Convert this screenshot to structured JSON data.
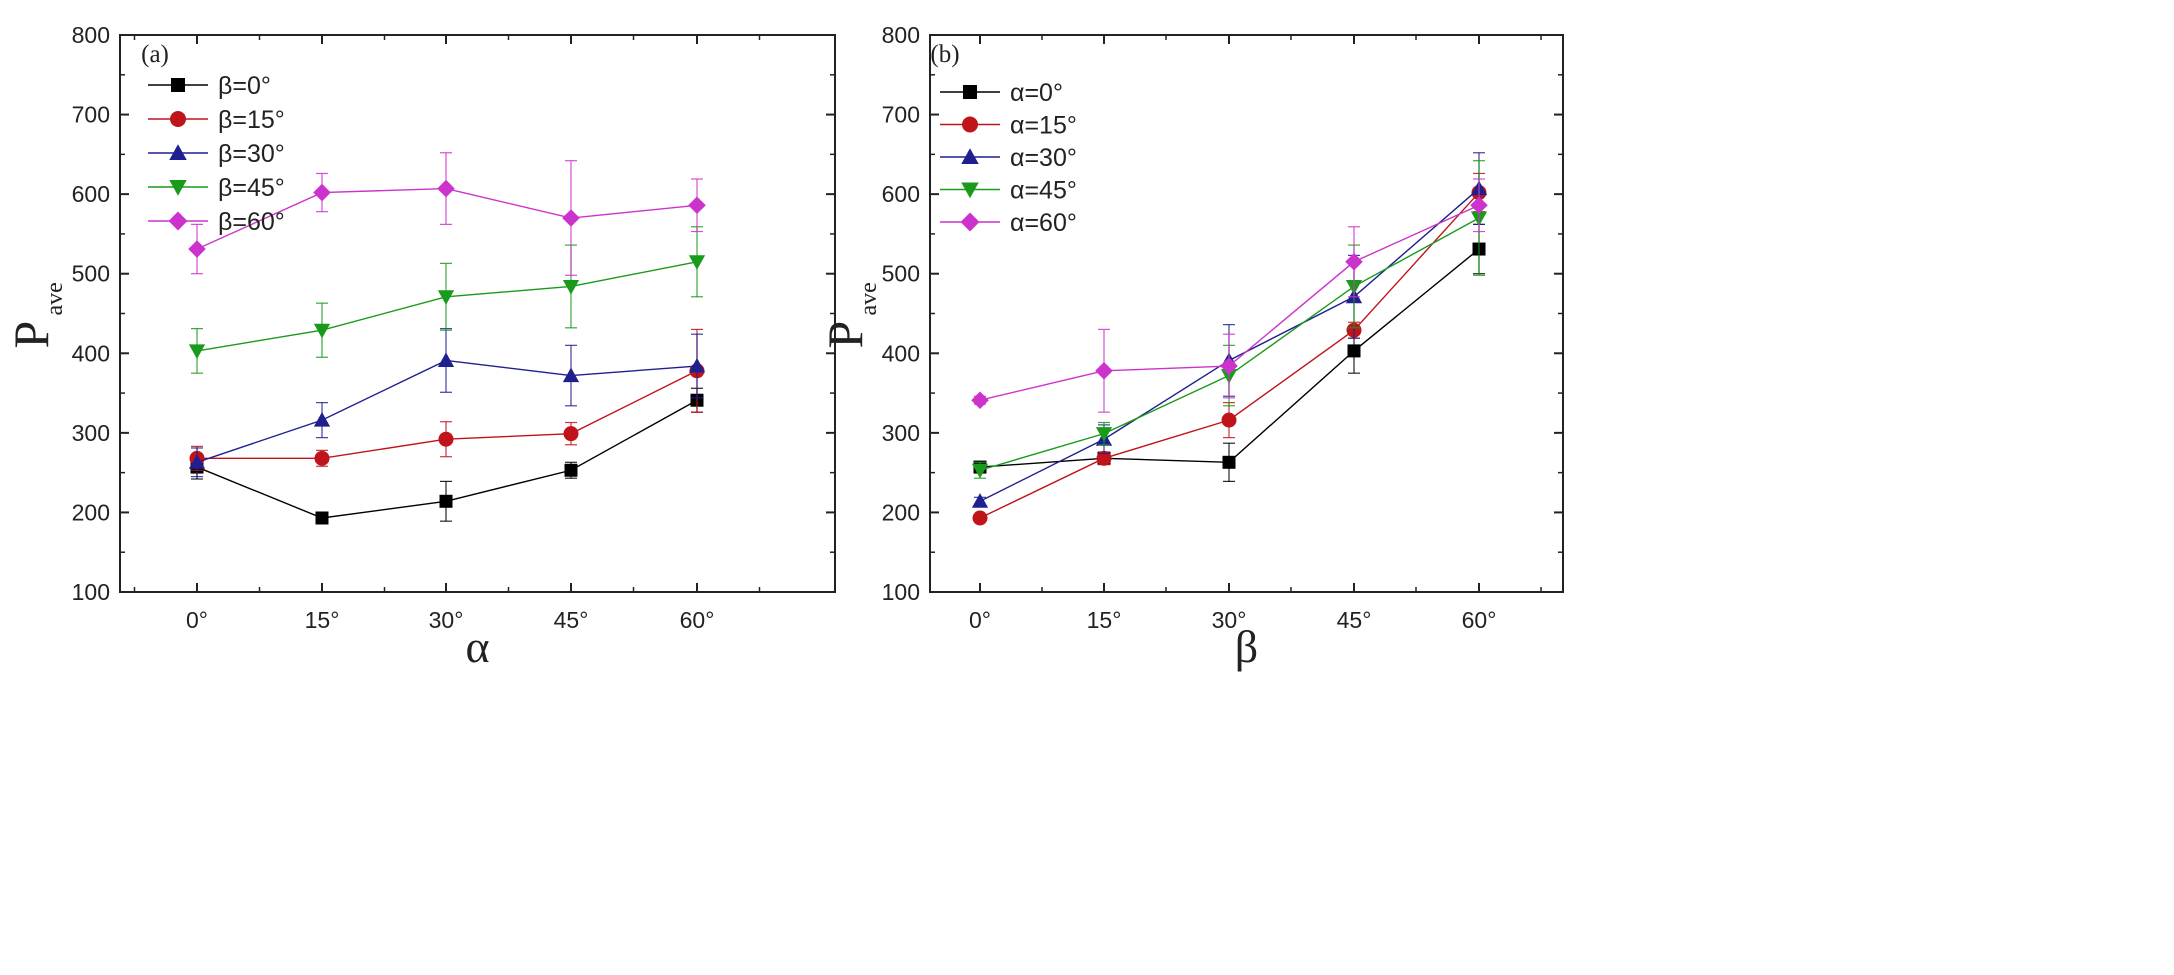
{
  "chart_data": [
    {
      "type": "line",
      "panel_label": "(a)",
      "xlabel": "α",
      "ylabel_main": "P",
      "ylabel_sub": "ave",
      "categories": [
        "0°",
        "15°",
        "30°",
        "45°",
        "60°"
      ],
      "ylim": [
        100,
        800
      ],
      "yticks": [
        "100",
        "200",
        "300",
        "400",
        "500",
        "600",
        "700",
        "800"
      ],
      "legend_position": "top-left",
      "series": [
        {
          "name": "β=0°",
          "marker": "square",
          "color": "#000000",
          "values": [
            257,
            193,
            214,
            253,
            341
          ],
          "errors": [
            15,
            4,
            25,
            10,
            15
          ]
        },
        {
          "name": "β=15°",
          "marker": "circle",
          "color": "#c0141b",
          "values": [
            268,
            268,
            292,
            299,
            378
          ],
          "errors": [
            15,
            10,
            22,
            14,
            52
          ]
        },
        {
          "name": "β=30°",
          "marker": "triangle-up",
          "color": "#1f1f8f",
          "values": [
            263,
            316,
            391,
            372,
            384
          ],
          "errors": [
            18,
            22,
            40,
            38,
            40
          ]
        },
        {
          "name": "β=45°",
          "marker": "triangle-down",
          "color": "#1a9a1a",
          "values": [
            403,
            429,
            471,
            484,
            515
          ],
          "errors": [
            28,
            34,
            42,
            52,
            44
          ]
        },
        {
          "name": "β=60°",
          "marker": "diamond",
          "color": "#cc33cc",
          "values": [
            531,
            602,
            607,
            570,
            586
          ],
          "errors": [
            31,
            24,
            45,
            72,
            33
          ]
        }
      ]
    },
    {
      "type": "line",
      "panel_label": "(b)",
      "xlabel": "β",
      "ylabel_main": "P",
      "ylabel_sub": "ave",
      "categories": [
        "0°",
        "15°",
        "30°",
        "45°",
        "60°"
      ],
      "ylim": [
        100,
        800
      ],
      "yticks": [
        "100",
        "200",
        "300",
        "400",
        "500",
        "600",
        "700",
        "800"
      ],
      "legend_position": "top-left",
      "series": [
        {
          "name": "α=0°",
          "marker": "square",
          "color": "#000000",
          "values": [
            257,
            268,
            263,
            403,
            531
          ],
          "errors": [
            6,
            6,
            24,
            28,
            31
          ]
        },
        {
          "name": "α=15°",
          "marker": "circle",
          "color": "#c0141b",
          "values": [
            193,
            268,
            316,
            429,
            602
          ],
          "errors": [
            4,
            8,
            22,
            10,
            24
          ]
        },
        {
          "name": "α=30°",
          "marker": "triangle-up",
          "color": "#1f1f8f",
          "values": [
            214,
            292,
            391,
            471,
            607
          ],
          "errors": [
            5,
            18,
            45,
            52,
            45
          ]
        },
        {
          "name": "α=45°",
          "marker": "triangle-down",
          "color": "#1a9a1a",
          "values": [
            253,
            299,
            372,
            484,
            570
          ],
          "errors": [
            10,
            14,
            38,
            52,
            72
          ]
        },
        {
          "name": "α=60°",
          "marker": "diamond",
          "color": "#cc33cc",
          "values": [
            341,
            378,
            384,
            515,
            586
          ],
          "errors": [
            5,
            52,
            40,
            44,
            33
          ]
        }
      ]
    }
  ]
}
